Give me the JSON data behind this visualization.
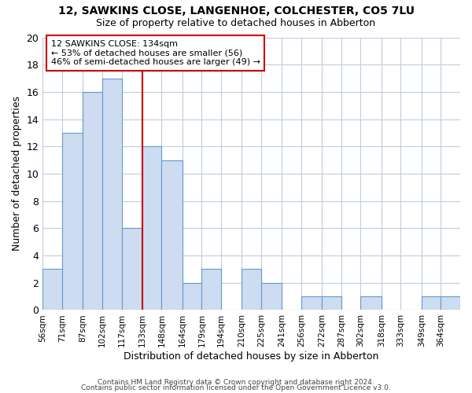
{
  "title": "12, SAWKINS CLOSE, LANGENHOE, COLCHESTER, CO5 7LU",
  "subtitle": "Size of property relative to detached houses in Abberton",
  "xlabel": "Distribution of detached houses by size in Abberton",
  "ylabel": "Number of detached properties",
  "bin_labels": [
    "56sqm",
    "71sqm",
    "87sqm",
    "102sqm",
    "117sqm",
    "133sqm",
    "148sqm",
    "164sqm",
    "179sqm",
    "194sqm",
    "210sqm",
    "225sqm",
    "241sqm",
    "256sqm",
    "272sqm",
    "287sqm",
    "302sqm",
    "318sqm",
    "333sqm",
    "349sqm",
    "364sqm"
  ],
  "bin_edges": [
    56,
    71,
    87,
    102,
    117,
    133,
    148,
    164,
    179,
    194,
    210,
    225,
    241,
    256,
    272,
    287,
    302,
    318,
    333,
    349,
    364,
    379
  ],
  "counts": [
    3,
    13,
    16,
    17,
    6,
    12,
    11,
    2,
    3,
    0,
    3,
    2,
    0,
    1,
    1,
    0,
    1,
    0,
    0,
    1,
    1
  ],
  "bar_color": "#cddcf0",
  "bar_edge_color": "#6699cc",
  "grid_color": "#c0ccdd",
  "reference_line_color": "#cc0000",
  "reference_line_x": 133,
  "ylim": [
    0,
    20
  ],
  "yticks": [
    0,
    2,
    4,
    6,
    8,
    10,
    12,
    14,
    16,
    18,
    20
  ],
  "annotation_line1": "12 SAWKINS CLOSE: 134sqm",
  "annotation_line2": "← 53% of detached houses are smaller (56)",
  "annotation_line3": "46% of semi-detached houses are larger (49) →",
  "annotation_box_edgecolor": "#cc0000",
  "footer1": "Contains HM Land Registry data © Crown copyright and database right 2024.",
  "footer2": "Contains public sector information licensed under the Open Government Licence v3.0."
}
